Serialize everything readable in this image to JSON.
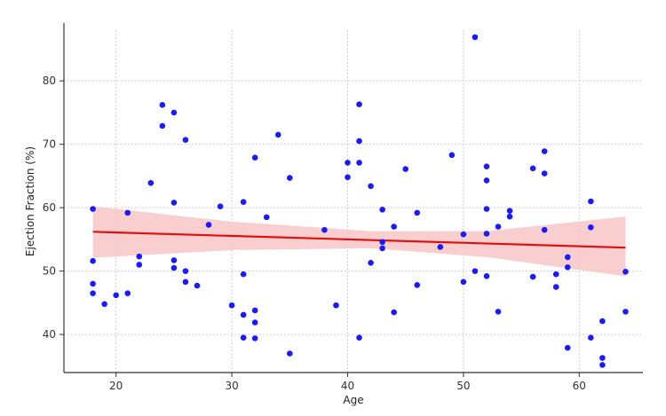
{
  "chart_data": {
    "type": "scatter",
    "xlabel": "Age",
    "ylabel": "Ejection Fraction (%)",
    "xlim": [
      15.5,
      65.5
    ],
    "ylim": [
      34,
      88
    ],
    "xticks": [
      20,
      30,
      40,
      50,
      60
    ],
    "yticks": [
      40,
      50,
      60,
      70,
      80
    ],
    "grid": true,
    "point_color": "#1a1aff",
    "fit_color": "#e01010",
    "band_color": "#f8c6c6",
    "points": [
      [
        18,
        59.8
      ],
      [
        18,
        51.6
      ],
      [
        18,
        48
      ],
      [
        18,
        46.5
      ],
      [
        19,
        44.8
      ],
      [
        20,
        46.2
      ],
      [
        21,
        59.2
      ],
      [
        21,
        46.5
      ],
      [
        22,
        52.3
      ],
      [
        22,
        51
      ],
      [
        23,
        63.9
      ],
      [
        24,
        76.2
      ],
      [
        24,
        72.9
      ],
      [
        25,
        75
      ],
      [
        25,
        60.8
      ],
      [
        25,
        51.7
      ],
      [
        25,
        50.5
      ],
      [
        26,
        70.7
      ],
      [
        26,
        50
      ],
      [
        26,
        48.3
      ],
      [
        27,
        47.7
      ],
      [
        28,
        57.3
      ],
      [
        29,
        60.2
      ],
      [
        30,
        44.6
      ],
      [
        31,
        60.9
      ],
      [
        31,
        49.5
      ],
      [
        31,
        43.1
      ],
      [
        31,
        39.5
      ],
      [
        32,
        67.9
      ],
      [
        32,
        43.8
      ],
      [
        32,
        41.9
      ],
      [
        32,
        39.4
      ],
      [
        33,
        58.5
      ],
      [
        34,
        71.5
      ],
      [
        35,
        64.7
      ],
      [
        35,
        37
      ],
      [
        38,
        56.5
      ],
      [
        39,
        44.6
      ],
      [
        40,
        67.1
      ],
      [
        40,
        64.8
      ],
      [
        41,
        76.3
      ],
      [
        41,
        70.5
      ],
      [
        41,
        67.1
      ],
      [
        41,
        39.5
      ],
      [
        42,
        63.4
      ],
      [
        42,
        51.3
      ],
      [
        43,
        59.7
      ],
      [
        43,
        54.6
      ],
      [
        43,
        53.6
      ],
      [
        44,
        57
      ],
      [
        44,
        43.5
      ],
      [
        45,
        66.1
      ],
      [
        46,
        59.2
      ],
      [
        46,
        47.8
      ],
      [
        48,
        53.8
      ],
      [
        49,
        68.3
      ],
      [
        50,
        55.8
      ],
      [
        50,
        48.3
      ],
      [
        51,
        86.9
      ],
      [
        51,
        50
      ],
      [
        52,
        66.5
      ],
      [
        52,
        64.3
      ],
      [
        52,
        59.8
      ],
      [
        52,
        55.9
      ],
      [
        52,
        49.2
      ],
      [
        53,
        57
      ],
      [
        53,
        43.6
      ],
      [
        54,
        59.5
      ],
      [
        54,
        58.6
      ],
      [
        56,
        66.2
      ],
      [
        56,
        49.1
      ],
      [
        57,
        68.9
      ],
      [
        57,
        65.4
      ],
      [
        57,
        56.5
      ],
      [
        58,
        49.5
      ],
      [
        58,
        47.5
      ],
      [
        59,
        52.2
      ],
      [
        59,
        50.6
      ],
      [
        59,
        37.9
      ],
      [
        61,
        61
      ],
      [
        61,
        56.9
      ],
      [
        61,
        39.5
      ],
      [
        62,
        42.1
      ],
      [
        62,
        36.3
      ],
      [
        62,
        35.2
      ],
      [
        64,
        49.9
      ],
      [
        64,
        43.6
      ]
    ],
    "fit_line": {
      "x": [
        18,
        64
      ],
      "y": [
        56.2,
        53.7
      ]
    },
    "confidence_band": {
      "x": [
        18,
        30,
        42,
        52,
        64
      ],
      "upper": [
        60.2,
        57.8,
        56.3,
        56.3,
        58.6
      ],
      "lower": [
        52.1,
        53.3,
        53.6,
        52.2,
        49.2
      ]
    }
  }
}
